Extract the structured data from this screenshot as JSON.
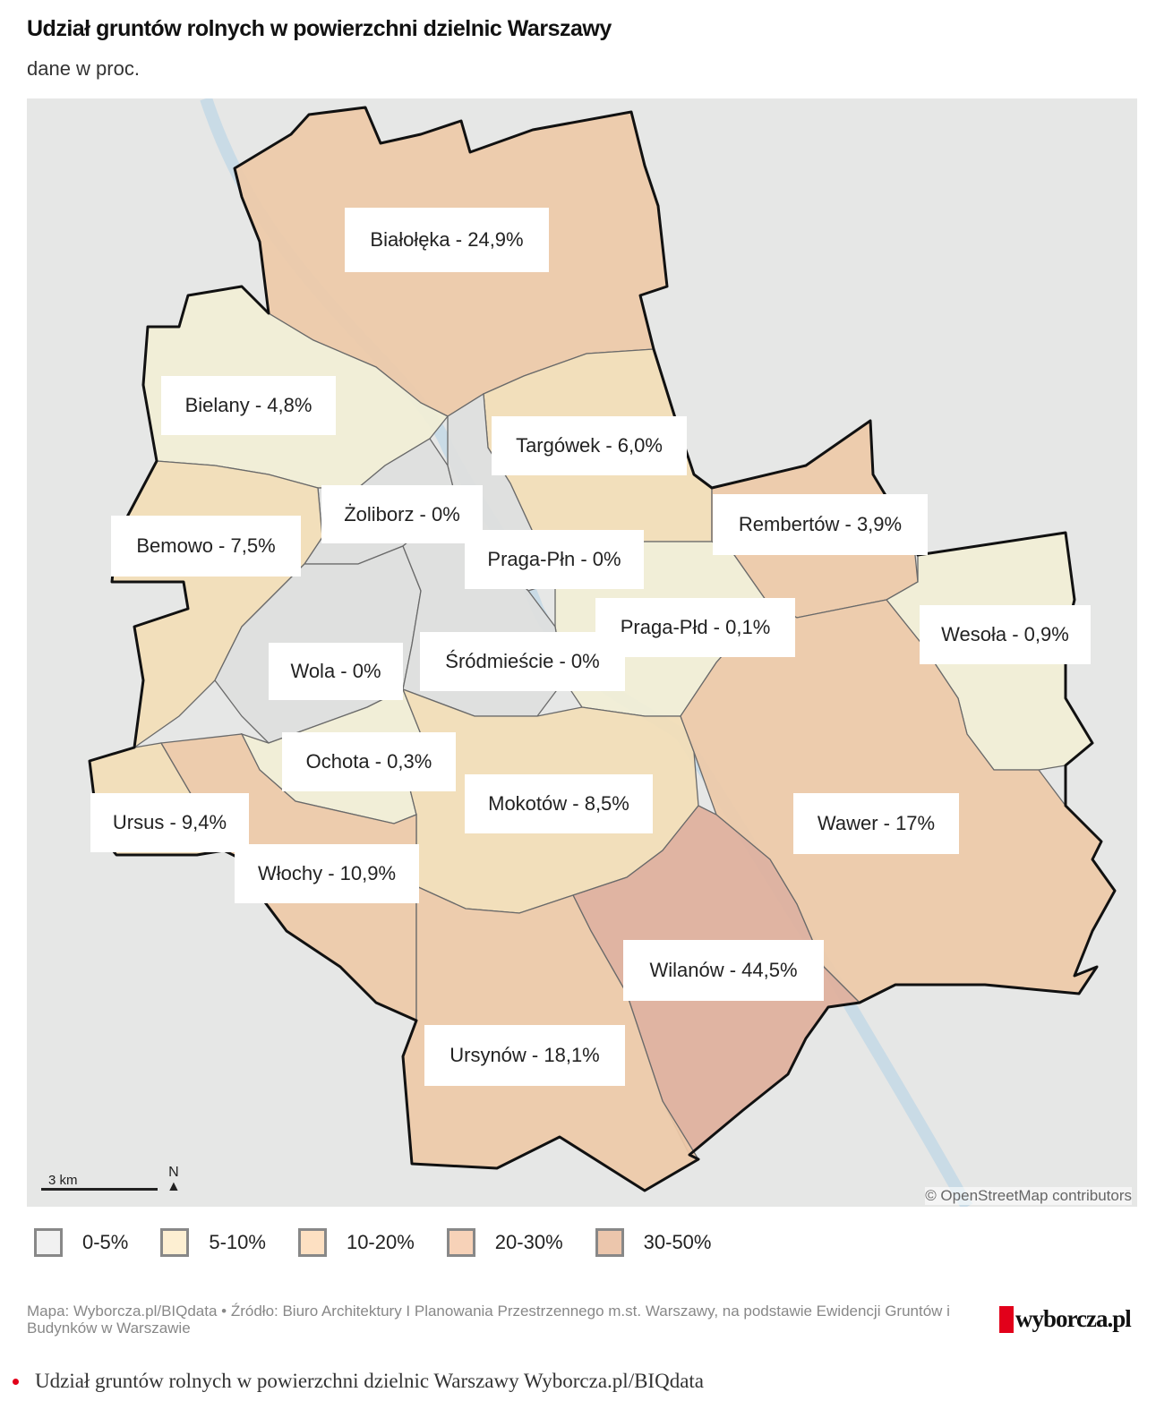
{
  "header": {
    "title": "Udział gruntów rolnych w powierzchni dzielnic Warszawy",
    "subtitle": "dane w proc."
  },
  "colors": {
    "c0": "#dedfde",
    "c1": "#f2efd6",
    "c2": "#f3deb7",
    "c3": "#eecaa8",
    "c4": "#dfb09c",
    "border": "#111111"
  },
  "districts": [
    {
      "name": "Białołęka",
      "value": 24.9,
      "label": "Białołęka - 24,9%"
    },
    {
      "name": "Bielany",
      "value": 4.8,
      "label": "Bielany - 4,8%"
    },
    {
      "name": "Targówek",
      "value": 6.0,
      "label": "Targówek - 6,0%"
    },
    {
      "name": "Żoliborz",
      "value": 0,
      "label": "Żoliborz - 0%"
    },
    {
      "name": "Bemowo",
      "value": 7.5,
      "label": "Bemowo - 7,5%"
    },
    {
      "name": "Praga-Płn",
      "value": 0,
      "label": "Praga-Płn - 0%"
    },
    {
      "name": "Rembertów",
      "value": 3.9,
      "label": "Rembertów - 3,9%"
    },
    {
      "name": "Praga-Płd",
      "value": 0.1,
      "label": "Praga-Płd - 0,1%"
    },
    {
      "name": "Wesoła",
      "value": 0.9,
      "label": "Wesoła - 0,9%"
    },
    {
      "name": "Wola",
      "value": 0,
      "label": "Wola - 0%"
    },
    {
      "name": "Śródmieście",
      "value": 0,
      "label": "Śródmieście - 0%"
    },
    {
      "name": "Ochota",
      "value": 0.3,
      "label": "Ochota - 0,3%"
    },
    {
      "name": "Mokotów",
      "value": 8.5,
      "label": "Mokotów - 8,5%"
    },
    {
      "name": "Wawer",
      "value": 17,
      "label": "Wawer - 17%"
    },
    {
      "name": "Ursus",
      "value": 9.4,
      "label": "Ursus - 9,4%"
    },
    {
      "name": "Włochy",
      "value": 10.9,
      "label": "Włochy - 10,9%"
    },
    {
      "name": "Wilanów",
      "value": 44.5,
      "label": "Wilanów - 44,5%"
    },
    {
      "name": "Ursynów",
      "value": 18.1,
      "label": "Ursynów - 18,1%"
    }
  ],
  "map": {
    "scale": "3 km",
    "north": "N",
    "attribution": "© OpenStreetMap contributors"
  },
  "legend": [
    {
      "label": "0-5%",
      "color": "#f1f1f1"
    },
    {
      "label": "5-10%",
      "color": "#fdefd2"
    },
    {
      "label": "10-20%",
      "color": "#fde0c2"
    },
    {
      "label": "20-30%",
      "color": "#f7d2b8"
    },
    {
      "label": "30-50%",
      "color": "#ecc6ac"
    }
  ],
  "footer": {
    "source": "Mapa: Wyborcza.pl/BIQdata • Źródło: Biuro Architektury I Planowania Przestrzennego m.st. Warszawy, na podstawie Ewidencji Gruntów i Budynków w Warszawie",
    "logo": "wyborcza.pl",
    "caption": "Udział gruntów rolnych w powierzchni dzielnic Warszawy Wyborcza.pl/BIQdata"
  }
}
